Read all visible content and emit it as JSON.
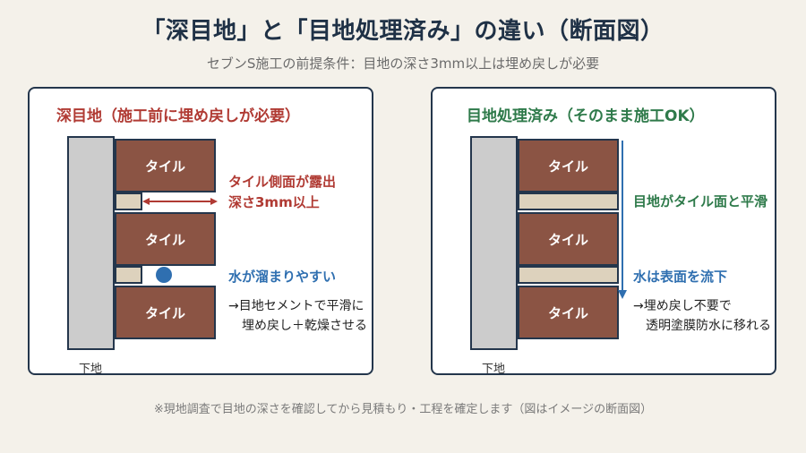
{
  "title": "「深目地」と「目地処理済み」の違い（断面図）",
  "subtitle": "セブンS施工の前提条件：目地の深さ3mm以上は埋め戻しが必要",
  "left_panel": {
    "heading": "深目地（施工前に埋め戻しが必要）",
    "tiles": [
      "タイル",
      "タイル",
      "タイル"
    ],
    "base_label": "下地",
    "callout_side_1": "タイル側面が露出",
    "callout_side_2": "深さ3mm以上",
    "callout_water": "水が溜まりやすい",
    "note_1": "→目地セメントで平滑に",
    "note_2": "埋め戻し＋乾燥させる"
  },
  "right_panel": {
    "heading": "目地処理済み（そのまま施工OK）",
    "tiles": [
      "タイル",
      "タイル",
      "タイル"
    ],
    "base_label": "下地",
    "callout_flush": "目地がタイル面と平滑",
    "callout_flow": "水は表面を流下",
    "note_1": "→埋め戻し不要で",
    "note_2": "透明塗膜防水に移れる"
  },
  "footer": "※現地調査で目地の深さを確認してから見積もり・工程を確定します（図はイメージの断面図）",
  "colors": {
    "tile": "#8b5444",
    "joint": "#ddd2bd",
    "base": "#cccccc",
    "warning": "#b03a33",
    "water": "#2f6fb0",
    "ok": "#2e7a4a"
  }
}
